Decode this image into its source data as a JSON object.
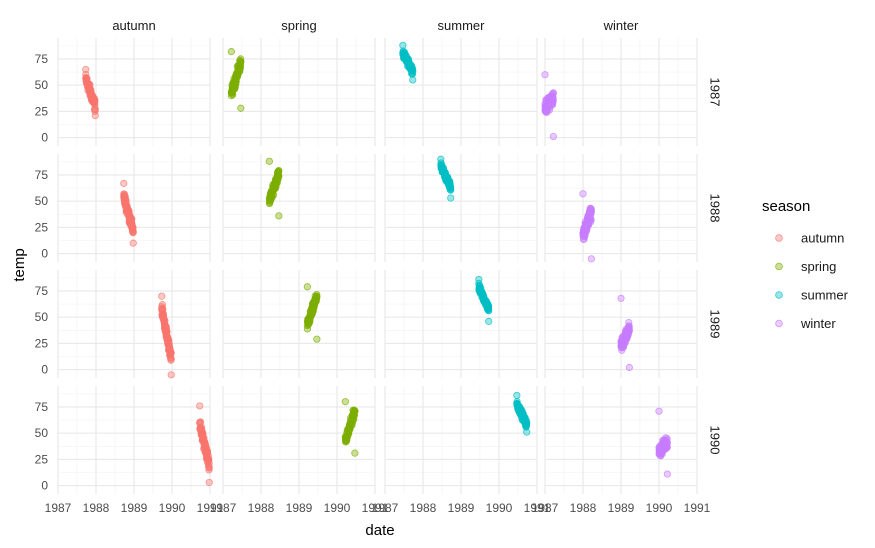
{
  "chart_data": {
    "type": "scatter",
    "facet_cols": [
      "autumn",
      "spring",
      "summer",
      "winter"
    ],
    "facet_rows": [
      "1987",
      "1988",
      "1989",
      "1990"
    ],
    "xlabel": "date",
    "ylabel": "temp",
    "xlim": [
      1987,
      1991
    ],
    "x_ticks": [
      1987,
      1988,
      1989,
      1990,
      1991
    ],
    "x_tick_labels": [
      "1987",
      "1988",
      "1989",
      "1990",
      "1991"
    ],
    "ylim": [
      -8,
      95
    ],
    "y_ticks": [
      0,
      25,
      50,
      75
    ],
    "y_tick_labels": [
      "0",
      "25",
      "50",
      "75"
    ],
    "grid": true,
    "point_alpha": 0.4,
    "legend": {
      "title": "season",
      "position": "right",
      "items": [
        {
          "label": "autumn",
          "color": "#F8766D"
        },
        {
          "label": "spring",
          "color": "#7CAE00"
        },
        {
          "label": "summer",
          "color": "#00BFC4"
        },
        {
          "label": "winter",
          "color": "#C77CFF"
        }
      ]
    },
    "clusters": [
      {
        "row": "1987",
        "col": "autumn",
        "color": "#F8766D",
        "x_start": 1987.73,
        "x_end": 1987.98,
        "y_start": 56,
        "y_end": 30,
        "y_spread": 8,
        "y_min": 21,
        "y_max": 65
      },
      {
        "row": "1987",
        "col": "spring",
        "color": "#7CAE00",
        "x_start": 1987.22,
        "x_end": 1987.47,
        "y_start": 42,
        "y_end": 72,
        "y_spread": 8,
        "y_min": 28,
        "y_max": 82
      },
      {
        "row": "1987",
        "col": "summer",
        "color": "#00BFC4",
        "x_start": 1987.47,
        "x_end": 1987.73,
        "y_start": 80,
        "y_end": 64,
        "y_spread": 5,
        "y_min": 55,
        "y_max": 88
      },
      {
        "row": "1987",
        "col": "winter",
        "color": "#C77CFF",
        "x_start": 1987.0,
        "x_end": 1987.22,
        "y_start": 28,
        "y_end": 38,
        "y_spread": 9,
        "y_min": 1,
        "y_max": 60
      },
      {
        "row": "1988",
        "col": "autumn",
        "color": "#F8766D",
        "x_start": 1988.73,
        "x_end": 1988.98,
        "y_start": 55,
        "y_end": 22,
        "y_spread": 8,
        "y_min": 10,
        "y_max": 67
      },
      {
        "row": "1988",
        "col": "spring",
        "color": "#7CAE00",
        "x_start": 1988.22,
        "x_end": 1988.47,
        "y_start": 50,
        "y_end": 77,
        "y_spread": 7,
        "y_min": 36,
        "y_max": 88
      },
      {
        "row": "1988",
        "col": "summer",
        "color": "#00BFC4",
        "x_start": 1988.47,
        "x_end": 1988.73,
        "y_start": 84,
        "y_end": 63,
        "y_spread": 5,
        "y_min": 53,
        "y_max": 90
      },
      {
        "row": "1988",
        "col": "winter",
        "color": "#C77CFF",
        "x_start": 1988.0,
        "x_end": 1988.22,
        "y_start": 18,
        "y_end": 40,
        "y_spread": 9,
        "y_min": -5,
        "y_max": 57
      },
      {
        "row": "1989",
        "col": "autumn",
        "color": "#F8766D",
        "x_start": 1989.73,
        "x_end": 1989.98,
        "y_start": 58,
        "y_end": 10,
        "y_spread": 9,
        "y_min": -5,
        "y_max": 70
      },
      {
        "row": "1989",
        "col": "spring",
        "color": "#7CAE00",
        "x_start": 1989.22,
        "x_end": 1989.47,
        "y_start": 42,
        "y_end": 70,
        "y_spread": 7,
        "y_min": 29,
        "y_max": 79
      },
      {
        "row": "1989",
        "col": "summer",
        "color": "#00BFC4",
        "x_start": 1989.47,
        "x_end": 1989.73,
        "y_start": 78,
        "y_end": 58,
        "y_spread": 5,
        "y_min": 46,
        "y_max": 86
      },
      {
        "row": "1989",
        "col": "winter",
        "color": "#C77CFF",
        "x_start": 1989.0,
        "x_end": 1989.22,
        "y_start": 22,
        "y_end": 40,
        "y_spread": 9,
        "y_min": 2,
        "y_max": 68
      },
      {
        "row": "1990",
        "col": "autumn",
        "color": "#F8766D",
        "x_start": 1990.73,
        "x_end": 1990.98,
        "y_start": 58,
        "y_end": 20,
        "y_spread": 8,
        "y_min": 3,
        "y_max": 76
      },
      {
        "row": "1990",
        "col": "spring",
        "color": "#7CAE00",
        "x_start": 1990.22,
        "x_end": 1990.47,
        "y_start": 42,
        "y_end": 72,
        "y_spread": 7,
        "y_min": 31,
        "y_max": 80
      },
      {
        "row": "1990",
        "col": "summer",
        "color": "#00BFC4",
        "x_start": 1990.47,
        "x_end": 1990.73,
        "y_start": 78,
        "y_end": 58,
        "y_spread": 5,
        "y_min": 51,
        "y_max": 86
      },
      {
        "row": "1990",
        "col": "winter",
        "color": "#C77CFF",
        "x_start": 1990.0,
        "x_end": 1990.22,
        "y_start": 32,
        "y_end": 42,
        "y_spread": 8,
        "y_min": 11,
        "y_max": 71
      }
    ]
  }
}
